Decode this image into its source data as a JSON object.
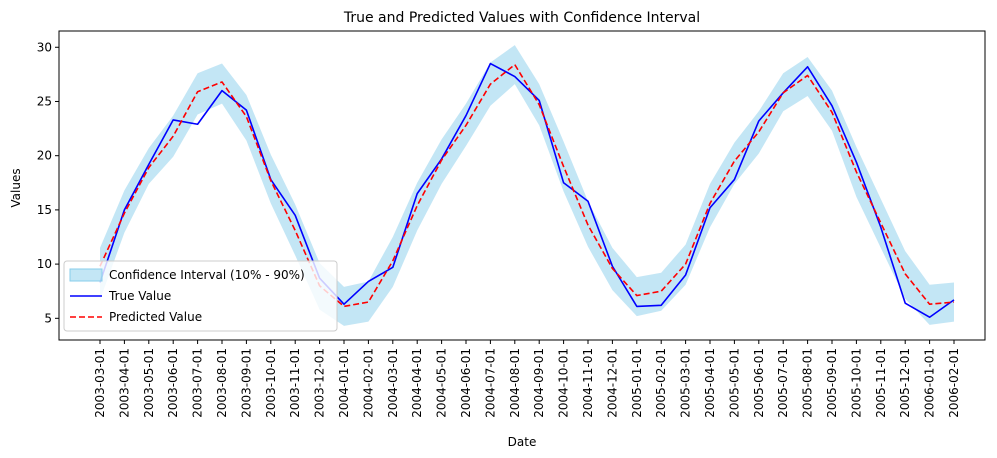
{
  "colors": {
    "band": "#87CEEB",
    "true_line": "#0000FF",
    "pred_line": "#FF0000",
    "axis": "#000000",
    "legend_border": "#CCCCCC"
  },
  "chart_data": {
    "type": "line",
    "title": "True and Predicted Values with Confidence Interval",
    "xlabel": "Date",
    "ylabel": "Values",
    "ylim": [
      3.0,
      31.5
    ],
    "yticks": [
      5,
      10,
      15,
      20,
      25,
      30
    ],
    "grid": false,
    "legend_position": "lower-left",
    "categories": [
      "2003-03-01",
      "2003-04-01",
      "2003-05-01",
      "2003-06-01",
      "2003-07-01",
      "2003-08-01",
      "2003-09-01",
      "2003-10-01",
      "2003-11-01",
      "2003-12-01",
      "2004-01-01",
      "2004-02-01",
      "2004-03-01",
      "2004-04-01",
      "2004-05-01",
      "2004-06-01",
      "2004-07-01",
      "2004-08-01",
      "2004-09-01",
      "2004-10-01",
      "2004-11-01",
      "2004-12-01",
      "2005-01-01",
      "2005-02-01",
      "2005-03-01",
      "2005-04-01",
      "2005-05-01",
      "2005-06-01",
      "2005-07-01",
      "2005-08-01",
      "2005-09-01",
      "2005-10-01",
      "2005-11-01",
      "2005-12-01",
      "2006-01-01",
      "2006-02-01"
    ],
    "series": [
      {
        "name": "True Value",
        "style": "solid",
        "values": [
          8.3,
          15.0,
          19.2,
          23.3,
          22.9,
          26.0,
          24.2,
          17.8,
          14.5,
          8.7,
          6.3,
          8.4,
          9.7,
          16.5,
          19.7,
          23.7,
          28.5,
          27.3,
          25.1,
          17.5,
          15.8,
          9.8,
          6.1,
          6.2,
          9.0,
          15.2,
          17.8,
          23.2,
          25.8,
          28.2,
          24.6,
          19.4,
          13.4,
          6.4,
          5.1,
          6.7
        ]
      },
      {
        "name": "Predicted Value",
        "style": "dashed",
        "values": [
          9.8,
          14.7,
          18.9,
          21.8,
          25.9,
          26.8,
          23.6,
          17.7,
          13.1,
          8.0,
          6.1,
          6.5,
          10.3,
          15.4,
          19.6,
          22.8,
          26.6,
          28.4,
          24.7,
          19.0,
          13.6,
          9.6,
          7.1,
          7.5,
          10.0,
          15.6,
          19.5,
          22.2,
          25.8,
          27.4,
          24.0,
          18.5,
          13.8,
          9.1,
          6.3,
          6.5
        ]
      }
    ],
    "confidence_interval": {
      "name": "Confidence Interval (10% - 90%)",
      "lower": [
        6.7,
        12.9,
        17.4,
        19.9,
        23.8,
        24.8,
        21.4,
        15.6,
        10.8,
        5.8,
        4.3,
        4.7,
        7.9,
        13.1,
        17.4,
        20.9,
        24.6,
        26.6,
        22.8,
        16.7,
        11.6,
        7.6,
        5.2,
        5.7,
        8.1,
        13.4,
        17.4,
        20.2,
        24.1,
        25.5,
        22.3,
        16.2,
        11.5,
        6.8,
        4.4,
        4.7
      ],
      "upper": [
        11.5,
        16.8,
        20.7,
        23.7,
        27.6,
        28.5,
        25.6,
        20.1,
        15.5,
        10.1,
        7.9,
        8.4,
        12.5,
        17.5,
        21.5,
        24.8,
        28.6,
        30.2,
        26.6,
        21.3,
        15.8,
        11.5,
        8.8,
        9.2,
        11.8,
        17.4,
        21.2,
        24.1,
        27.6,
        29.1,
        26.0,
        20.8,
        16.0,
        11.2,
        8.1,
        8.3
      ]
    }
  }
}
